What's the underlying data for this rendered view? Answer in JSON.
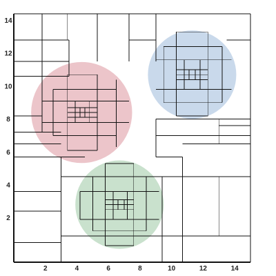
{
  "chart_data": {
    "type": "diagram",
    "title": "",
    "xlabel": "",
    "ylabel": "",
    "xlim": [
      -0.2,
      15.2
    ],
    "ylim": [
      -0.7,
      14.4
    ],
    "x_ticks": [
      2,
      4,
      6,
      8,
      10,
      12,
      14
    ],
    "y_ticks": [
      2,
      4,
      6,
      8,
      10,
      12,
      14
    ],
    "circles": [
      {
        "id": "red",
        "cx": 4.3,
        "cy": 8.4,
        "r": 3.2,
        "color": "#e7b7bd"
      },
      {
        "id": "blue",
        "cx": 11.3,
        "cy": 10.7,
        "r": 2.8,
        "color": "#bccfe6"
      },
      {
        "id": "green",
        "cx": 6.7,
        "cy": 2.8,
        "r": 2.8,
        "color": "#bcd9c1"
      }
    ],
    "grid_color": "#111111",
    "outer_box": [
      0,
      0,
      15,
      14.4
    ]
  }
}
